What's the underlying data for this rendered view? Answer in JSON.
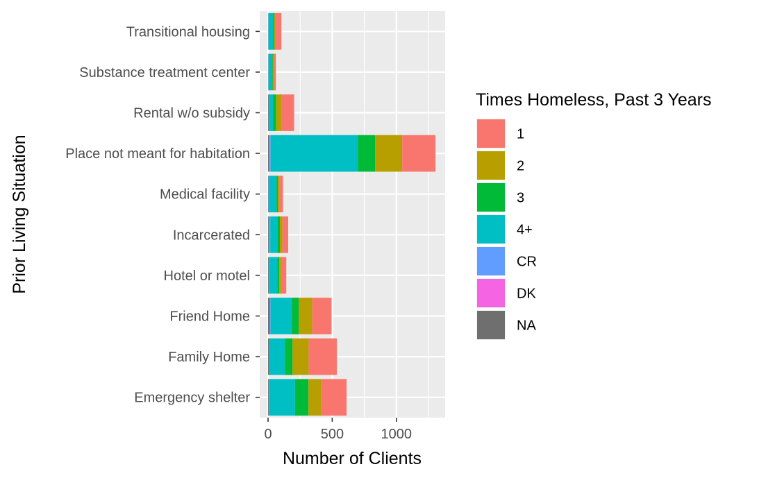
{
  "chart_data": {
    "type": "bar",
    "orientation": "horizontal",
    "stacked": true,
    "categories": [
      "Emergency shelter",
      "Family Home",
      "Friend Home",
      "Hotel or motel",
      "Incarcerated",
      "Medical facility",
      "Place not meant for habitation",
      "Rental w/o subsidy",
      "Substance treatment center",
      "Transitional housing"
    ],
    "stack_order": [
      "1",
      "2",
      "3",
      "4+",
      "CR",
      "DK",
      "NA"
    ],
    "series": [
      {
        "name": "1",
        "color": "#F8766D",
        "values": [
          197,
          220,
          150,
          40,
          45,
          25,
          260,
          100,
          12,
          45
        ]
      },
      {
        "name": "2",
        "color": "#B79F00",
        "values": [
          100,
          125,
          105,
          15,
          20,
          15,
          210,
          40,
          12,
          10
        ]
      },
      {
        "name": "3",
        "color": "#00BA38",
        "values": [
          105,
          60,
          55,
          15,
          20,
          10,
          135,
          25,
          8,
          10
        ]
      },
      {
        "name": "4+",
        "color": "#00BFC4",
        "values": [
          200,
          120,
          165,
          65,
          55,
          60,
          680,
          30,
          25,
          35
        ]
      },
      {
        "name": "CR",
        "color": "#619CFF",
        "values": [
          5,
          3,
          5,
          2,
          12,
          3,
          5,
          3,
          2,
          2
        ]
      },
      {
        "name": "DK",
        "color": "#F564E3",
        "values": [
          0,
          0,
          0,
          0,
          0,
          0,
          5,
          0,
          0,
          0
        ]
      },
      {
        "name": "NA",
        "color": "#6F6F6F",
        "values": [
          5,
          8,
          15,
          5,
          5,
          3,
          10,
          5,
          2,
          2
        ]
      }
    ],
    "xlabel": "Number of Clients",
    "ylabel": "Prior Living Situation",
    "xlim": [
      -65,
      1380
    ],
    "xticks": [
      0,
      500,
      1000
    ],
    "xtick_labels": [
      "0",
      "500",
      "1000"
    ],
    "x_minor": [
      250,
      750,
      1250
    ],
    "grid": true,
    "panel_background": "#EBEBEB",
    "legend": {
      "title": "Times Homeless, Past 3 Years",
      "placement": "right",
      "entries": [
        "1",
        "2",
        "3",
        "4+",
        "CR",
        "DK",
        "NA"
      ]
    }
  }
}
